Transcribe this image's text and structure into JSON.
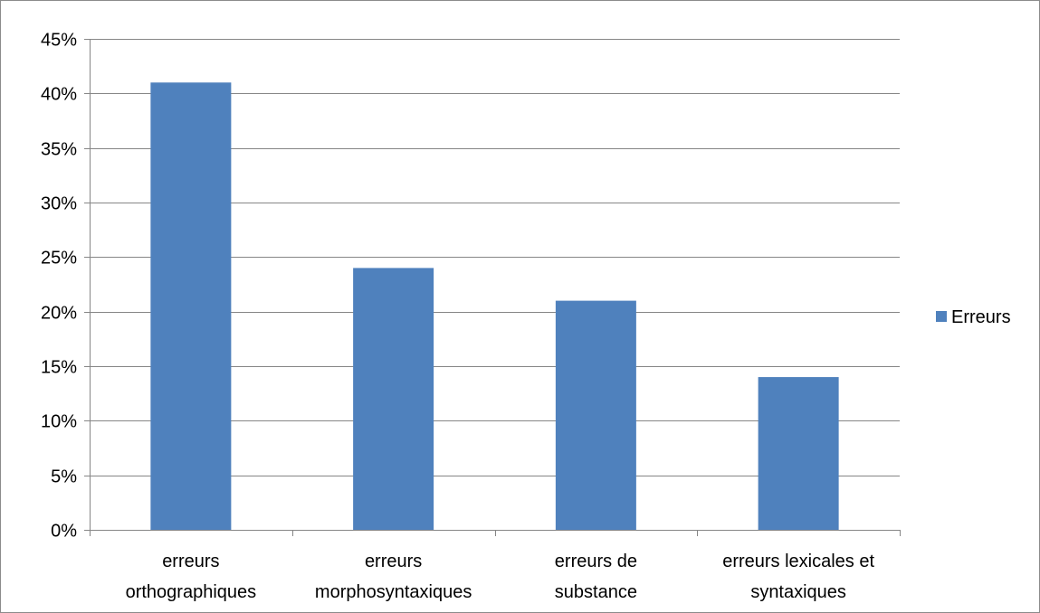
{
  "chart_data": {
    "type": "bar",
    "categories": [
      [
        "erreurs",
        "orthographiques"
      ],
      [
        "erreurs",
        "morphosyntaxiques"
      ],
      [
        "erreurs de",
        "substance"
      ],
      [
        "erreurs lexicales et",
        "syntaxiques"
      ]
    ],
    "series": [
      {
        "name": "Erreurs",
        "values": [
          0.41,
          0.24,
          0.21,
          0.14
        ],
        "color": "#4f81bd"
      }
    ],
    "ylim": [
      0,
      0.45
    ],
    "y_tick_step": 0.05,
    "y_tick_format": "percent",
    "y_ticks": [
      "0%",
      "5%",
      "10%",
      "15%",
      "20%",
      "25%",
      "30%",
      "35%",
      "40%",
      "45%"
    ],
    "grid": true,
    "legend_position": "right",
    "title": "",
    "xlabel": "",
    "ylabel": ""
  }
}
